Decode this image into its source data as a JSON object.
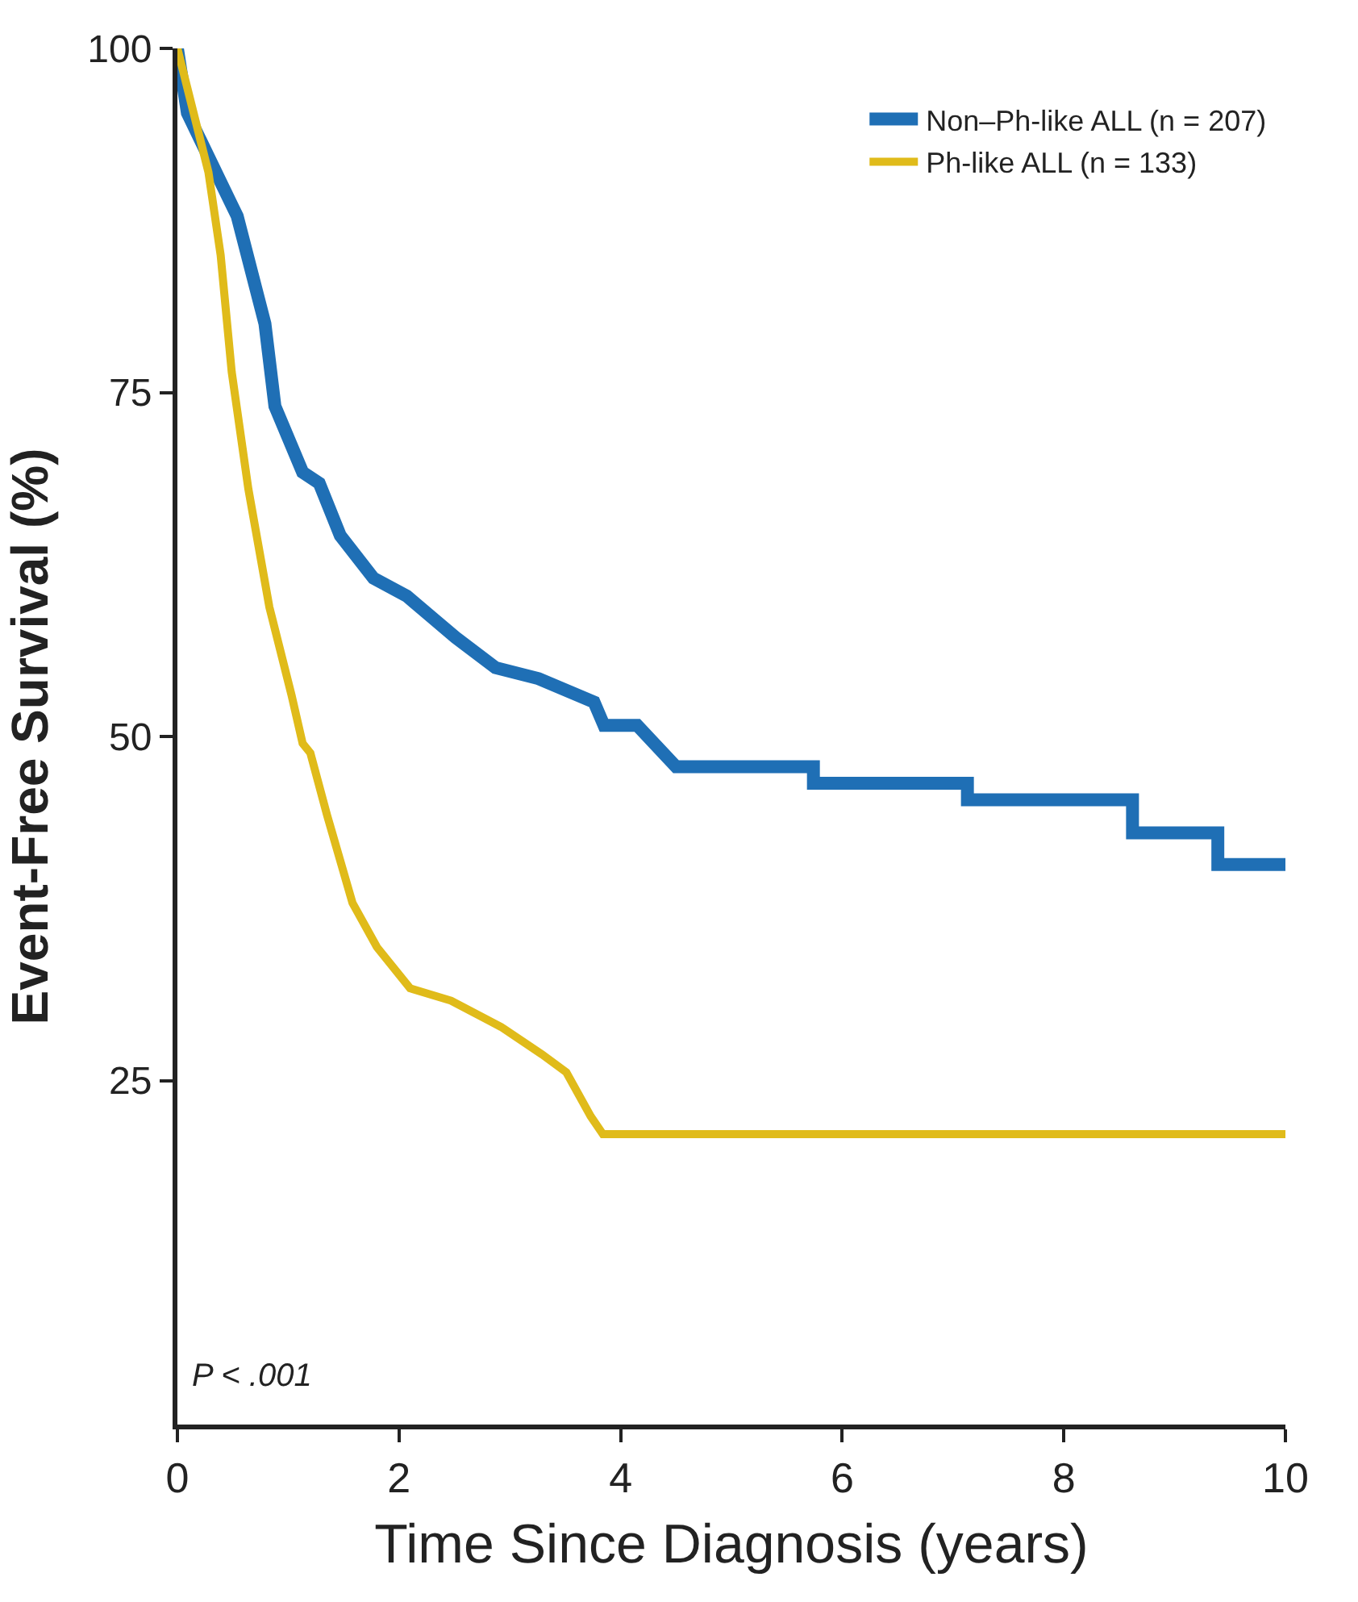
{
  "chart_data": {
    "type": "line",
    "xlabel": "Time Since Diagnosis (years)",
    "ylabel": "Event-Free Survival (%)",
    "xlim": [
      0,
      10
    ],
    "xticks": [
      0,
      2,
      4,
      6,
      8,
      10
    ],
    "ylim": [
      0,
      100
    ],
    "yticks": [
      25,
      50,
      75,
      100
    ],
    "legend": "top right",
    "line_style": "solid",
    "marker": "none",
    "annotations": [
      "P < .001"
    ],
    "series": [
      {
        "name": "Non–Ph-like ALL (n = 207)",
        "color": "#1f6fb5",
        "x": [
          0,
          0.09,
          0.39,
          0.54,
          0.79,
          0.88,
          1.13,
          1.28,
          1.47,
          1.77,
          2.07,
          2.51,
          2.87,
          3.26,
          3.76,
          3.85,
          4.15,
          4.5,
          5.74,
          5.74,
          7.13,
          7.13,
          8.62,
          8.62,
          9.39,
          9.39,
          10
        ],
        "values": [
          100,
          95.3,
          90.3,
          87.8,
          80,
          74,
          69.2,
          68.4,
          64.6,
          61.5,
          60.2,
          57.2,
          55,
          54.2,
          52.5,
          50.8,
          50.8,
          47.8,
          47.8,
          46.6,
          46.6,
          45.4,
          45.4,
          43,
          43,
          40.7,
          40.7
        ]
      },
      {
        "name": "Ph-like ALL (n = 133)",
        "color": "#e0bb1a",
        "x": [
          0,
          0.28,
          0.39,
          0.49,
          0.64,
          0.83,
          1.03,
          1.13,
          1.2,
          1.35,
          1.58,
          1.8,
          2.1,
          2.47,
          2.92,
          3.29,
          3.51,
          3.73,
          3.84,
          10
        ],
        "values": [
          100,
          91,
          85,
          76.5,
          68,
          59.4,
          53,
          49.5,
          48.8,
          44.3,
          37.9,
          34.7,
          31.7,
          30.8,
          28.9,
          26.9,
          25.6,
          22.4,
          21.1,
          21.1
        ]
      }
    ]
  }
}
